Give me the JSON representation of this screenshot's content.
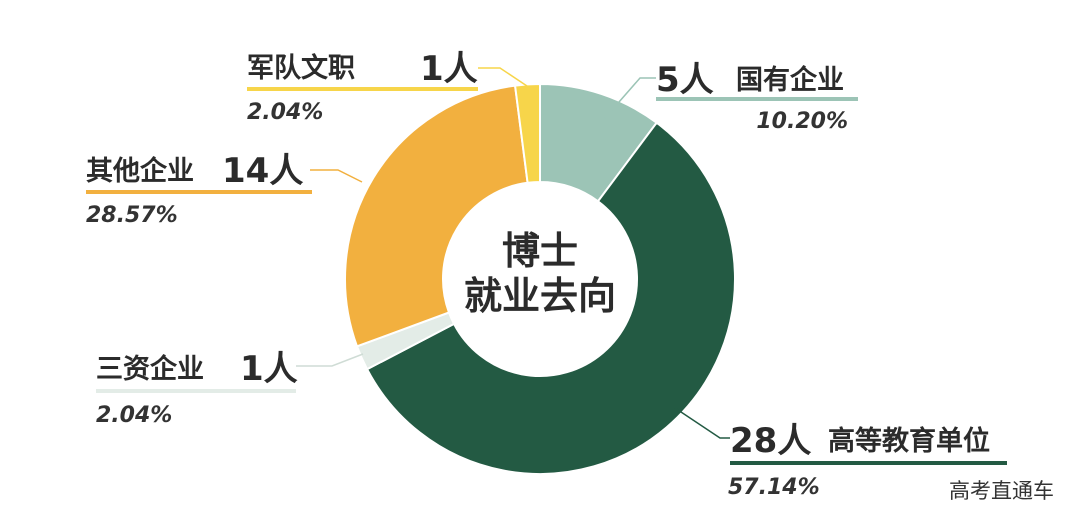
{
  "chart_data": {
    "type": "pie",
    "title": "",
    "center_label": [
      "博士",
      "就业去向"
    ],
    "categories": [
      "国有企业",
      "高等教育单位",
      "三资企业",
      "其他企业",
      "军队文职"
    ],
    "values": [
      5,
      28,
      1,
      14,
      1
    ],
    "count_labels": [
      "5人",
      "28人",
      "1人",
      "14人",
      "1人"
    ],
    "percent_labels": [
      "10.20%",
      "57.14%",
      "2.04%",
      "28.57%",
      "2.04%"
    ],
    "colors": [
      "#9cc4b6",
      "#235a43",
      "#e3ece7",
      "#f2b03f",
      "#f7d54a"
    ]
  },
  "watermark": "高考直通车"
}
